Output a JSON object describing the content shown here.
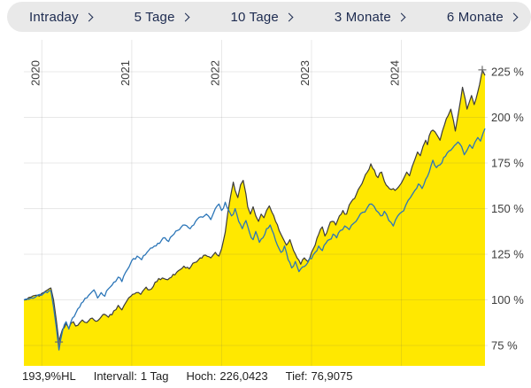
{
  "tab_bar": {
    "tabs": [
      {
        "label": "Intraday"
      },
      {
        "label": "5 Tage"
      },
      {
        "label": "10 Tage"
      },
      {
        "label": "3 Monate"
      },
      {
        "label": "6 Monate"
      }
    ]
  },
  "status_bar": {
    "performance": {
      "value": "193,9%HL"
    },
    "interval": {
      "label": "Intervall:",
      "value": "1 Tag"
    },
    "high": {
      "label": "Hoch:",
      "value": "226,0423"
    },
    "low": {
      "label": "Tief:",
      "value": "76,9075"
    }
  },
  "colors": {
    "area_fill": "#ffe800",
    "main_line": "#3c3c3c",
    "benchmark_line": "#2c76b8",
    "grid": "rgba(90,90,90,0.14)",
    "tab_bg": "#e9e9e9",
    "tab_text": "#1d2b50",
    "axis_text": "#3d3d3d",
    "marker": "#6a6a6a"
  },
  "chart_data": {
    "type": "line",
    "title": "",
    "grid": true,
    "x_axis": {
      "ticks": [
        2020,
        2021,
        2022,
        2023,
        2024
      ],
      "range": [
        2019.8,
        2024.93
      ],
      "tick_label_rotation": -90
    },
    "y_axis": {
      "side": "right",
      "unit": "%",
      "tick_values": [
        75,
        100,
        125,
        150,
        175,
        200,
        225
      ],
      "tick_labels": [
        "75 %",
        "100 %",
        "125 %",
        "150 %",
        "175 %",
        "200 %",
        "225 %"
      ],
      "range": [
        64,
        242
      ]
    },
    "markers": {
      "high": {
        "x": 2024.9,
        "y": 226.0423
      },
      "low": {
        "x": 2020.19,
        "y": 76.9075
      }
    },
    "series": [
      {
        "name": "main-instrument",
        "style": "area",
        "color": "#3c3c3c",
        "fill": "#ffe800",
        "points": [
          [
            2019.8,
            100
          ],
          [
            2019.88,
            101.5
          ],
          [
            2019.95,
            102.5
          ],
          [
            2020.02,
            104
          ],
          [
            2020.08,
            106
          ],
          [
            2020.1,
            106.5
          ],
          [
            2020.13,
            100
          ],
          [
            2020.16,
            89
          ],
          [
            2020.19,
            76.91
          ],
          [
            2020.23,
            84
          ],
          [
            2020.27,
            87
          ],
          [
            2020.3,
            84.5
          ],
          [
            2020.35,
            88
          ],
          [
            2020.4,
            86
          ],
          [
            2020.45,
            89
          ],
          [
            2020.5,
            87.5
          ],
          [
            2020.56,
            90
          ],
          [
            2020.62,
            88.5
          ],
          [
            2020.68,
            92
          ],
          [
            2020.74,
            90.5
          ],
          [
            2020.8,
            94
          ],
          [
            2020.85,
            97
          ],
          [
            2020.89,
            94.5
          ],
          [
            2020.94,
            99
          ],
          [
            2020.99,
            102
          ],
          [
            2021.05,
            104
          ],
          [
            2021.1,
            103
          ],
          [
            2021.16,
            107
          ],
          [
            2021.22,
            106
          ],
          [
            2021.28,
            110
          ],
          [
            2021.34,
            112
          ],
          [
            2021.4,
            111
          ],
          [
            2021.46,
            114
          ],
          [
            2021.52,
            116
          ],
          [
            2021.58,
            118.5
          ],
          [
            2021.64,
            117
          ],
          [
            2021.7,
            120.5
          ],
          [
            2021.76,
            123
          ],
          [
            2021.82,
            124.5
          ],
          [
            2021.88,
            123
          ],
          [
            2021.93,
            126
          ],
          [
            2021.97,
            124
          ],
          [
            2022.0,
            128
          ],
          [
            2022.04,
            137
          ],
          [
            2022.07,
            148
          ],
          [
            2022.1,
            157
          ],
          [
            2022.13,
            164.5
          ],
          [
            2022.15,
            160
          ],
          [
            2022.18,
            156
          ],
          [
            2022.21,
            163
          ],
          [
            2022.24,
            165.5
          ],
          [
            2022.27,
            158
          ],
          [
            2022.29,
            151
          ],
          [
            2022.32,
            147
          ],
          [
            2022.35,
            151
          ],
          [
            2022.38,
            146
          ],
          [
            2022.41,
            143
          ],
          [
            2022.44,
            147
          ],
          [
            2022.47,
            145
          ],
          [
            2022.5,
            149
          ],
          [
            2022.53,
            151.5
          ],
          [
            2022.56,
            148
          ],
          [
            2022.6,
            143
          ],
          [
            2022.64,
            138
          ],
          [
            2022.68,
            134
          ],
          [
            2022.72,
            130
          ],
          [
            2022.76,
            133
          ],
          [
            2022.8,
            127
          ],
          [
            2022.84,
            123
          ],
          [
            2022.88,
            119.5
          ],
          [
            2022.92,
            123
          ],
          [
            2022.96,
            121
          ],
          [
            2023.0,
            126
          ],
          [
            2023.04,
            130
          ],
          [
            2023.08,
            136
          ],
          [
            2023.12,
            140
          ],
          [
            2023.15,
            135
          ],
          [
            2023.19,
            140
          ],
          [
            2023.23,
            143
          ],
          [
            2023.27,
            141
          ],
          [
            2023.31,
            146
          ],
          [
            2023.35,
            149
          ],
          [
            2023.39,
            147
          ],
          [
            2023.42,
            152
          ],
          [
            2023.46,
            155
          ],
          [
            2023.5,
            158
          ],
          [
            2023.54,
            162
          ],
          [
            2023.58,
            166
          ],
          [
            2023.62,
            170
          ],
          [
            2023.66,
            174.5
          ],
          [
            2023.7,
            171
          ],
          [
            2023.74,
            167
          ],
          [
            2023.78,
            170
          ],
          [
            2023.81,
            165
          ],
          [
            2023.85,
            162
          ],
          [
            2023.89,
            160.5
          ],
          [
            2023.93,
            160
          ],
          [
            2023.97,
            162
          ],
          [
            2024.0,
            164
          ],
          [
            2024.03,
            167
          ],
          [
            2024.06,
            170
          ],
          [
            2024.09,
            168
          ],
          [
            2024.12,
            173
          ],
          [
            2024.15,
            177
          ],
          [
            2024.18,
            181
          ],
          [
            2024.21,
            179
          ],
          [
            2024.24,
            184
          ],
          [
            2024.27,
            187.5
          ],
          [
            2024.29,
            185
          ],
          [
            2024.31,
            190
          ],
          [
            2024.35,
            193
          ],
          [
            2024.4,
            190
          ],
          [
            2024.43,
            187.5
          ],
          [
            2024.48,
            196
          ],
          [
            2024.52,
            201
          ],
          [
            2024.55,
            204.5
          ],
          [
            2024.58,
            198
          ],
          [
            2024.6,
            192.5
          ],
          [
            2024.63,
            201
          ],
          [
            2024.66,
            210
          ],
          [
            2024.68,
            216.5
          ],
          [
            2024.71,
            210
          ],
          [
            2024.73,
            204.5
          ],
          [
            2024.76,
            209
          ],
          [
            2024.78,
            212
          ],
          [
            2024.81,
            207
          ],
          [
            2024.83,
            210
          ],
          [
            2024.85,
            214
          ],
          [
            2024.87,
            218
          ],
          [
            2024.9,
            226.04
          ],
          [
            2024.93,
            223
          ]
        ]
      },
      {
        "name": "benchmark",
        "style": "line",
        "color": "#2c76b8",
        "points": [
          [
            2019.8,
            100
          ],
          [
            2019.88,
            101
          ],
          [
            2019.95,
            102.5
          ],
          [
            2020.02,
            103.5
          ],
          [
            2020.08,
            105
          ],
          [
            2020.1,
            105
          ],
          [
            2020.13,
            96
          ],
          [
            2020.16,
            85
          ],
          [
            2020.19,
            72.5
          ],
          [
            2020.23,
            83
          ],
          [
            2020.27,
            88
          ],
          [
            2020.3,
            84
          ],
          [
            2020.34,
            90
          ],
          [
            2020.38,
            93
          ],
          [
            2020.42,
            96
          ],
          [
            2020.46,
            99
          ],
          [
            2020.5,
            101
          ],
          [
            2020.54,
            103.5
          ],
          [
            2020.58,
            105.5
          ],
          [
            2020.62,
            101
          ],
          [
            2020.66,
            104
          ],
          [
            2020.7,
            102
          ],
          [
            2020.74,
            106
          ],
          [
            2020.78,
            108
          ],
          [
            2020.82,
            110
          ],
          [
            2020.85,
            112.5
          ],
          [
            2020.89,
            110
          ],
          [
            2020.93,
            115
          ],
          [
            2020.97,
            118
          ],
          [
            2021.0,
            121.5
          ],
          [
            2021.06,
            124
          ],
          [
            2021.11,
            122
          ],
          [
            2021.17,
            126
          ],
          [
            2021.23,
            128.5
          ],
          [
            2021.29,
            131
          ],
          [
            2021.35,
            134
          ],
          [
            2021.41,
            132
          ],
          [
            2021.47,
            136
          ],
          [
            2021.53,
            138.5
          ],
          [
            2021.59,
            141
          ],
          [
            2021.65,
            139
          ],
          [
            2021.71,
            143
          ],
          [
            2021.77,
            145.5
          ],
          [
            2021.83,
            147
          ],
          [
            2021.88,
            144
          ],
          [
            2021.93,
            150
          ],
          [
            2021.97,
            152.5
          ],
          [
            2022.0,
            149
          ],
          [
            2022.04,
            153.5
          ],
          [
            2022.08,
            149
          ],
          [
            2022.11,
            146
          ],
          [
            2022.15,
            150
          ],
          [
            2022.19,
            143
          ],
          [
            2022.23,
            139
          ],
          [
            2022.27,
            143.5
          ],
          [
            2022.31,
            137
          ],
          [
            2022.35,
            133
          ],
          [
            2022.38,
            137.5
          ],
          [
            2022.42,
            131.5
          ],
          [
            2022.46,
            134
          ],
          [
            2022.5,
            139
          ],
          [
            2022.54,
            141
          ],
          [
            2022.58,
            136
          ],
          [
            2022.62,
            130
          ],
          [
            2022.66,
            126
          ],
          [
            2022.7,
            129.5
          ],
          [
            2022.74,
            122
          ],
          [
            2022.78,
            117.5
          ],
          [
            2022.82,
            121
          ],
          [
            2022.86,
            115.5
          ],
          [
            2022.9,
            118
          ],
          [
            2022.96,
            120.5
          ],
          [
            2023.0,
            122.5
          ],
          [
            2023.04,
            126
          ],
          [
            2023.08,
            129.5
          ],
          [
            2023.12,
            127
          ],
          [
            2023.16,
            131
          ],
          [
            2023.2,
            133
          ],
          [
            2023.24,
            136
          ],
          [
            2023.28,
            134
          ],
          [
            2023.32,
            138
          ],
          [
            2023.37,
            140.5
          ],
          [
            2023.42,
            138.5
          ],
          [
            2023.47,
            142
          ],
          [
            2023.52,
            145
          ],
          [
            2023.57,
            148
          ],
          [
            2023.62,
            150.5
          ],
          [
            2023.67,
            152.5
          ],
          [
            2023.72,
            149
          ],
          [
            2023.77,
            146
          ],
          [
            2023.81,
            148.5
          ],
          [
            2023.86,
            143.5
          ],
          [
            2023.91,
            140.5
          ],
          [
            2023.96,
            146
          ],
          [
            2024.0,
            148
          ],
          [
            2024.05,
            152
          ],
          [
            2024.1,
            156
          ],
          [
            2024.15,
            160
          ],
          [
            2024.19,
            163.5
          ],
          [
            2024.23,
            161
          ],
          [
            2024.27,
            166
          ],
          [
            2024.31,
            170
          ],
          [
            2024.35,
            176.5
          ],
          [
            2024.39,
            172.5
          ],
          [
            2024.43,
            174
          ],
          [
            2024.47,
            178
          ],
          [
            2024.51,
            180.5
          ],
          [
            2024.55,
            182
          ],
          [
            2024.59,
            184.5
          ],
          [
            2024.63,
            186.5
          ],
          [
            2024.67,
            184
          ],
          [
            2024.7,
            179.5
          ],
          [
            2024.73,
            182
          ],
          [
            2024.76,
            185
          ],
          [
            2024.79,
            183
          ],
          [
            2024.82,
            186.5
          ],
          [
            2024.85,
            189
          ],
          [
            2024.88,
            187
          ],
          [
            2024.91,
            191.5
          ],
          [
            2024.93,
            193.9
          ]
        ]
      }
    ]
  }
}
